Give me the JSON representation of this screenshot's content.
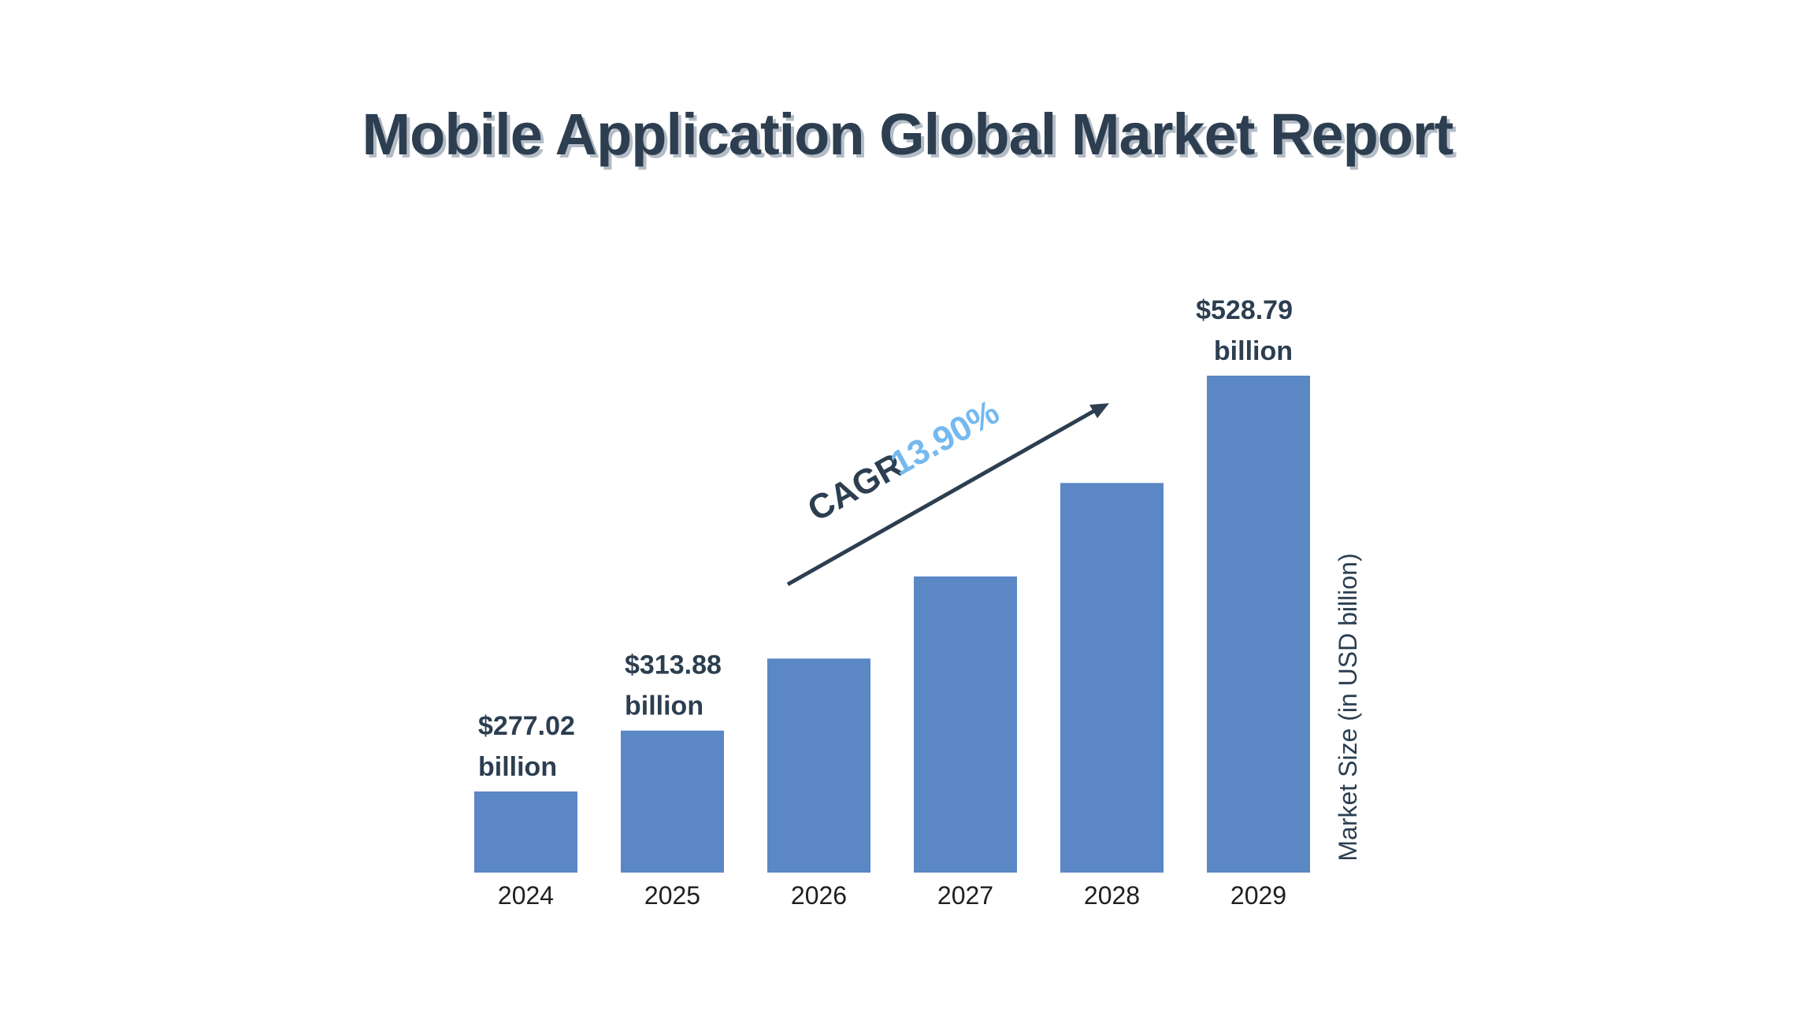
{
  "title": "Mobile Application Global Market Report",
  "chart_data": {
    "type": "bar",
    "title": "Mobile Application Global Market Report",
    "categories": [
      "2024",
      "2025",
      "2026",
      "2027",
      "2028",
      "2029"
    ],
    "values": [
      277.02,
      313.88,
      357.5,
      407.2,
      463.8,
      528.79
    ],
    "labels": [
      {
        "index": 0,
        "line1": "$277.02",
        "line2": "billion"
      },
      {
        "index": 1,
        "line1": "$313.88",
        "line2": "billion"
      },
      {
        "index": 5,
        "line1": "$528.79",
        "line2": "billion"
      }
    ],
    "ylabel": "Market Size (in USD billion)",
    "xlabel": "",
    "annotation": {
      "prefix": "CAGR",
      "value": "13.90%"
    },
    "grid": false,
    "colors": {
      "bar": "#5b87c5",
      "text": "#2c3e50",
      "cagr": "#74b9f0"
    }
  }
}
